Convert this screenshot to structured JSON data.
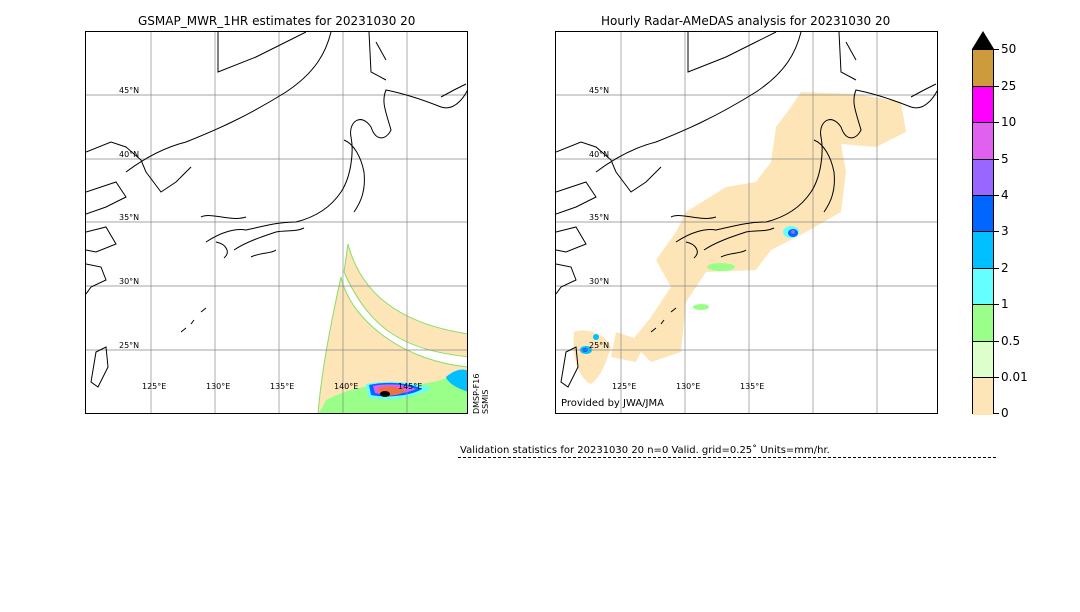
{
  "left_panel": {
    "title": "GSMAP_MWR_1HR estimates for 20231030 20",
    "sensor_label_1": "DMSP-F16",
    "sensor_label_2": "SSMIS"
  },
  "right_panel": {
    "title": "Hourly Radar-AMeDAS analysis for 20231030 20",
    "credit": "Provided by JWA/JMA"
  },
  "lat_labels": [
    "45°N",
    "40°N",
    "35°N",
    "30°N",
    "25°N"
  ],
  "lon_labels_left": [
    "125°E",
    "130°E",
    "135°E",
    "140°E",
    "145°E"
  ],
  "lon_labels_right": [
    "125°E",
    "130°E",
    "135°E"
  ],
  "colorbar": {
    "ticks": [
      "50",
      "25",
      "10",
      "5",
      "4",
      "3",
      "2",
      "1",
      "0.5",
      "0.01",
      "0"
    ],
    "colors": [
      "#cd9a3c",
      "#ff00ff",
      "#e060f0",
      "#9966ff",
      "#0066ff",
      "#00c0ff",
      "#66ffff",
      "#99ff88",
      "#ddffcc",
      "#fde5b8"
    ],
    "extend_color": "#000000"
  },
  "validation": {
    "text": "Validation statistics for 20231030 20  n=0 Valid. grid=0.25˚ Units=mm/hr."
  }
}
